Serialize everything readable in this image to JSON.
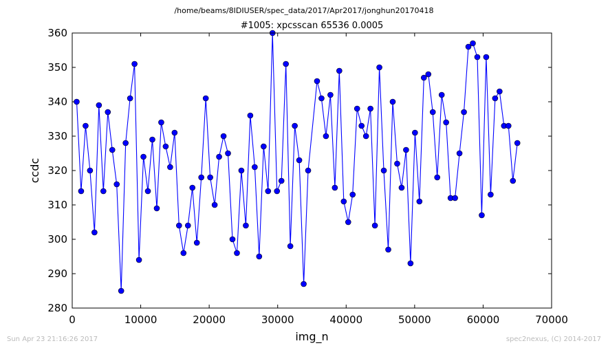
{
  "header": {
    "path": "/home/beams/8IDIUSER/spec_data/2017/Apr2017/jonghun20170418",
    "title": "#1005: xpcsscan 65536 0.0005"
  },
  "footer": {
    "timestamp": "Sun Apr 23 21:16:26 2017",
    "credit": "spec2nexus, (C) 2014-2017"
  },
  "chart_data": {
    "type": "line",
    "title": "#1005: xpcsscan 65536 0.0005",
    "xlabel": "img_n",
    "ylabel": "ccdc",
    "xlim": [
      0,
      70000
    ],
    "ylim": [
      280,
      360
    ],
    "xticks": [
      0,
      10000,
      20000,
      30000,
      40000,
      50000,
      60000,
      70000
    ],
    "yticks": [
      280,
      290,
      300,
      310,
      320,
      330,
      340,
      350,
      360
    ],
    "grid": false,
    "legend": "none",
    "line_color": "#0000ff",
    "marker": "circle",
    "x": [
      650,
      1300,
      1950,
      2600,
      3250,
      3900,
      4550,
      5200,
      5850,
      6500,
      7150,
      7800,
      8450,
      9100,
      9750,
      10400,
      11050,
      11700,
      12350,
      13000,
      13650,
      14300,
      14950,
      15600,
      16250,
      16900,
      17550,
      18200,
      18850,
      19500,
      20150,
      20800,
      21450,
      22100,
      22750,
      23400,
      24050,
      24700,
      25350,
      26000,
      26650,
      27300,
      27950,
      28600,
      29250,
      29900,
      30550,
      31200,
      31850,
      32500,
      33150,
      33800,
      34450,
      35750,
      36400,
      37050,
      37700,
      38350,
      39000,
      39650,
      40300,
      40950,
      41600,
      42250,
      42900,
      43550,
      44200,
      44850,
      45500,
      46150,
      46800,
      47450,
      48100,
      48750,
      49400,
      50050,
      50700,
      51350,
      52000,
      52650,
      53300,
      53950,
      54600,
      55250,
      55900,
      56550,
      57200,
      57850,
      58500,
      59150,
      59800,
      60450,
      61100,
      61750,
      62400,
      63050,
      63700,
      64350,
      65000
    ],
    "values": [
      340,
      314,
      333,
      320,
      302,
      339,
      314,
      337,
      326,
      316,
      285,
      328,
      341,
      351,
      294,
      324,
      314,
      329,
      309,
      334,
      327,
      321,
      331,
      304,
      296,
      304,
      315,
      299,
      318,
      341,
      318,
      310,
      324,
      330,
      325,
      300,
      296,
      320,
      304,
      336,
      321,
      295,
      327,
      314,
      360,
      314,
      317,
      351,
      298,
      333,
      323,
      287,
      320,
      346,
      341,
      330,
      342,
      315,
      349,
      311,
      305,
      313,
      338,
      333,
      330,
      338,
      304,
      350,
      320,
      297,
      340,
      322,
      315,
      326,
      293,
      331,
      311,
      347,
      348,
      337,
      318,
      342,
      334,
      312,
      312,
      325,
      337,
      356,
      357,
      353,
      307,
      353,
      313,
      341,
      343,
      333,
      333,
      317,
      328
    ]
  }
}
